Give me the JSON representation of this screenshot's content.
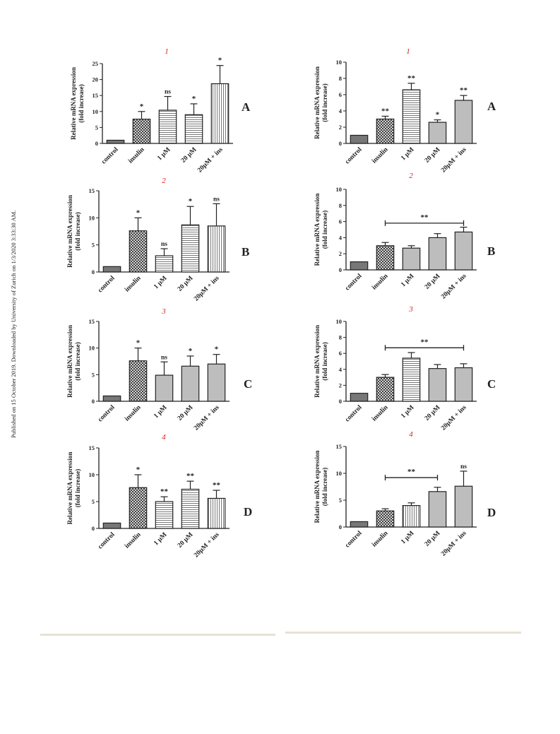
{
  "side_note": "Published on 15 October 2019. Downloaded by University of Zurich on 1/3/2020 3:33:30 AM.",
  "colors": {
    "bar_control": "#777777",
    "outline": "#222222",
    "panel_number": "#dd2222",
    "rule": "#e6e2d2"
  },
  "chart_data": [
    {
      "type": "bar",
      "panel_number": "1",
      "panel_letter": "A",
      "ylabel": [
        "Relative mRNA expression",
        "(fold increase)"
      ],
      "categories": [
        "control",
        "insulin",
        "1 µM",
        "20 µM",
        "20µM + ins"
      ],
      "values": [
        1,
        7.6,
        10.4,
        9,
        18.7
      ],
      "errors": [
        0,
        2.4,
        4.3,
        3.4,
        5.7
      ],
      "annotations": [
        "",
        "*",
        "ns",
        "*",
        "*"
      ],
      "yticks": [
        0,
        5,
        10,
        15,
        20,
        25
      ],
      "ylim": [
        0,
        25
      ],
      "patterns": [
        "solid",
        "cross",
        "horizontal",
        "horizontal",
        "vertical"
      ]
    },
    {
      "type": "bar",
      "panel_number": "1",
      "panel_letter": "A",
      "ylabel": [
        "Relative mRNA expression",
        "(fold increase)"
      ],
      "categories": [
        "control",
        "insulin",
        "1 µM",
        "20 µM",
        "20µM + ins"
      ],
      "values": [
        1,
        3,
        6.6,
        2.6,
        5.3
      ],
      "errors": [
        0,
        0.35,
        0.8,
        0.3,
        0.6
      ],
      "annotations": [
        "",
        "**",
        "**",
        "*",
        "**"
      ],
      "yticks": [
        0,
        2,
        4,
        6,
        8,
        10
      ],
      "ylim": [
        0,
        10
      ],
      "patterns": [
        "solid",
        "cross",
        "horizontal",
        "grey",
        "grey"
      ]
    },
    {
      "type": "bar",
      "panel_number": "2",
      "panel_letter": "B",
      "ylabel": [
        "Relative mRNA expression",
        "(fold increase)"
      ],
      "categories": [
        "control",
        "insulin",
        "1 µM",
        "20 µM",
        "20µM + ins"
      ],
      "values": [
        1,
        7.6,
        3,
        8.7,
        8.5
      ],
      "errors": [
        0,
        2.4,
        1.3,
        3.4,
        4.1
      ],
      "annotations": [
        "",
        "*",
        "ns",
        "*",
        "ns"
      ],
      "yticks": [
        0,
        5,
        10,
        15
      ],
      "ylim": [
        0,
        15
      ],
      "patterns": [
        "solid",
        "cross",
        "horizontal",
        "horizontal",
        "vertical"
      ]
    },
    {
      "type": "bar",
      "panel_number": "2",
      "panel_letter": "B",
      "ylabel": [
        "Relative mRNA expression",
        "(fold increase)"
      ],
      "categories": [
        "control",
        "insulin",
        "1 µM",
        "20 µM",
        "20µM + ins"
      ],
      "values": [
        1,
        3,
        2.7,
        4,
        4.7
      ],
      "errors": [
        0,
        0.4,
        0.3,
        0.5,
        0.6
      ],
      "annotations": [
        "",
        "",
        "",
        "",
        ""
      ],
      "bracket": {
        "from": 1,
        "to": 4,
        "label": "**",
        "y": 5.8
      },
      "yticks": [
        0,
        2,
        4,
        6,
        8,
        10
      ],
      "ylim": [
        0,
        10
      ],
      "patterns": [
        "solid",
        "cross",
        "grey",
        "grey",
        "grey"
      ]
    },
    {
      "type": "bar",
      "panel_number": "3",
      "panel_letter": "C",
      "ylabel": [
        "Relative mRNA expression",
        "(fold increase)"
      ],
      "categories": [
        "control",
        "insulin",
        "1 µM",
        "20 µM",
        "20µM + ins"
      ],
      "values": [
        1,
        7.6,
        4.9,
        6.6,
        7
      ],
      "errors": [
        0,
        2.4,
        2.5,
        1.9,
        1.8
      ],
      "annotations": [
        "",
        "*",
        "ns",
        "*",
        "*"
      ],
      "yticks": [
        0,
        5,
        10,
        15
      ],
      "ylim": [
        0,
        15
      ],
      "patterns": [
        "solid",
        "cross",
        "grey",
        "grey",
        "grey"
      ]
    },
    {
      "type": "bar",
      "panel_number": "3",
      "panel_letter": "C",
      "ylabel": [
        "Relative mRNA expression",
        "(fold increase)"
      ],
      "categories": [
        "control",
        "insulin",
        "1 µM",
        "20 µM",
        "20µM + ins"
      ],
      "values": [
        1,
        3,
        5.4,
        4.1,
        4.2
      ],
      "errors": [
        0,
        0.35,
        0.7,
        0.5,
        0.5
      ],
      "annotations": [
        "",
        "",
        "",
        "",
        ""
      ],
      "bracket": {
        "from": 1,
        "to": 4,
        "label": "**",
        "y": 6.7
      },
      "yticks": [
        0,
        2,
        4,
        6,
        8,
        10
      ],
      "ylim": [
        0,
        10
      ],
      "patterns": [
        "solid",
        "cross",
        "horizontal",
        "grey",
        "grey"
      ]
    },
    {
      "type": "bar",
      "panel_number": "4",
      "panel_letter": "D",
      "ylabel": [
        "Relative mRNA expression",
        "(fold increase)"
      ],
      "categories": [
        "control",
        "insulin",
        "1 µM",
        "20 µM",
        "20µM + ins"
      ],
      "values": [
        1,
        7.6,
        5,
        7.3,
        5.6
      ],
      "errors": [
        0,
        2.4,
        0.9,
        1.5,
        1.5
      ],
      "annotations": [
        "",
        "*",
        "**",
        "**",
        "**"
      ],
      "yticks": [
        0,
        5,
        10,
        15
      ],
      "ylim": [
        0,
        15
      ],
      "patterns": [
        "solid",
        "cross",
        "horizontal",
        "horizontal",
        "vertical"
      ]
    },
    {
      "type": "bar",
      "panel_number": "4",
      "panel_letter": "D",
      "ylabel": [
        "Relative mRNA expression",
        "(fold increase)"
      ],
      "categories": [
        "control",
        "insulin",
        "1 µM",
        "20 µM",
        "20µM + ins"
      ],
      "values": [
        1,
        3,
        4,
        6.6,
        7.6
      ],
      "errors": [
        0,
        0.4,
        0.5,
        0.8,
        2.8
      ],
      "annotations": [
        "",
        "",
        "",
        "",
        "ns"
      ],
      "bracket": {
        "from": 1,
        "to": 3,
        "label": "**",
        "y": 9.2
      },
      "yticks": [
        0,
        5,
        10,
        15
      ],
      "ylim": [
        0,
        15
      ],
      "patterns": [
        "solid",
        "cross",
        "vertical",
        "grey",
        "grey"
      ]
    }
  ]
}
